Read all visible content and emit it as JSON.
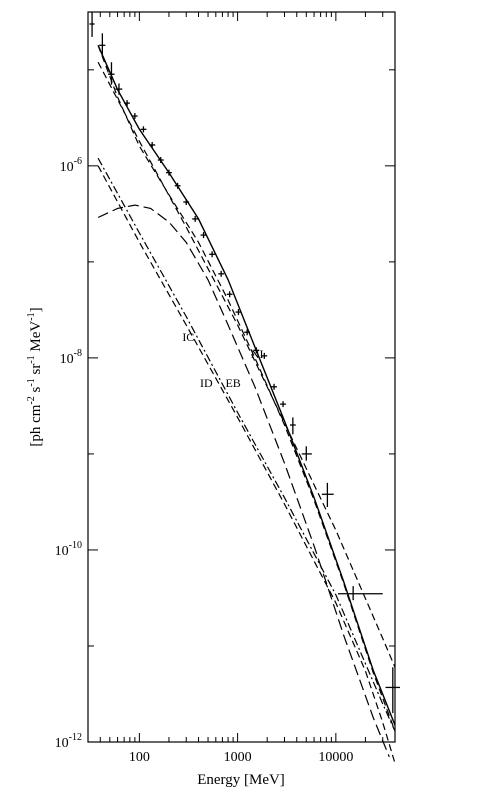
{
  "chart_data": {
    "type": "line",
    "title": "",
    "xlabel": "Energy [MeV]",
    "ylabel": "[ph cm^-2 s^-1 sr^-1 MeV^-1]",
    "ylabel_parts": [
      "[ph cm",
      "-2",
      " s",
      "-1",
      " sr",
      "-1",
      " MeV",
      "-1",
      "]"
    ],
    "xscale": "log",
    "yscale": "log",
    "xlim": [
      30,
      40000
    ],
    "ylim": [
      1e-12,
      4e-05
    ],
    "xticks": [
      {
        "value": 100,
        "label": "100"
      },
      {
        "value": 1000,
        "label": "1000"
      },
      {
        "value": 10000,
        "label": "10000"
      }
    ],
    "yticks": [
      {
        "value": 1e-06,
        "base": "10",
        "exp": "-6"
      },
      {
        "value": 1e-08,
        "base": "10",
        "exp": "-8"
      },
      {
        "value": 1e-10,
        "base": "10",
        "exp": "-10"
      },
      {
        "value": 1e-12,
        "base": "10",
        "exp": "-12"
      }
    ],
    "grid": false,
    "series": [
      {
        "name": "",
        "style": "solid",
        "points": [
          [
            38,
            1.8e-05
          ],
          [
            60,
            6.2e-06
          ],
          [
            100,
            2.4e-06
          ],
          [
            200,
            8.5e-07
          ],
          [
            400,
            2.8e-07
          ],
          [
            800,
            6.5e-08
          ],
          [
            1500,
            1.3e-08
          ],
          [
            3000,
            2.2e-09
          ],
          [
            6000,
            3.5e-10
          ],
          [
            12000,
            4.7e-11
          ],
          [
            24000,
            5.6e-12
          ],
          [
            40000,
            1.5e-12
          ]
        ]
      },
      {
        "name": "",
        "style": "dashed",
        "points": [
          [
            38,
            1.8e-05
          ],
          [
            60,
            5.2e-06
          ],
          [
            100,
            1.6e-06
          ],
          [
            200,
            5e-07
          ],
          [
            400,
            1.6e-07
          ],
          [
            800,
            4e-08
          ],
          [
            1500,
            1e-08
          ],
          [
            3000,
            2e-09
          ],
          [
            6000,
            3.3e-10
          ],
          [
            12000,
            4.5e-11
          ],
          [
            24000,
            5.3e-12
          ],
          [
            40000,
            1.3e-12
          ]
        ]
      },
      {
        "name": "",
        "style": "long-dashed",
        "points": [
          [
            38,
            2.9e-07
          ],
          [
            60,
            3.6e-07
          ],
          [
            90,
            3.9e-07
          ],
          [
            130,
            3.6e-07
          ],
          [
            200,
            2.6e-07
          ],
          [
            300,
            1.6e-07
          ],
          [
            500,
            6.5e-08
          ],
          [
            800,
            2.2e-08
          ],
          [
            1500,
            5e-09
          ],
          [
            3000,
            8e-10
          ],
          [
            6000,
            1.1e-10
          ],
          [
            12000,
            1.3e-11
          ],
          [
            24000,
            1.8e-12
          ],
          [
            35000,
            7e-13
          ]
        ]
      },
      {
        "name": "IC",
        "style": "dashed",
        "points": [
          [
            38,
            1.2e-05
          ],
          [
            100,
            1.8e-06
          ],
          [
            300,
            2.3e-07
          ],
          [
            1000,
            2.2e-08
          ],
          [
            3000,
            2.1e-09
          ],
          [
            10000,
            1.6e-10
          ],
          [
            30000,
            1.2e-11
          ],
          [
            40000,
            6e-12
          ]
        ]
      },
      {
        "name": "ID",
        "style": "dash-dot",
        "points": [
          [
            38,
            1.2e-06
          ],
          [
            100,
            2e-07
          ],
          [
            300,
            2.7e-08
          ],
          [
            1000,
            2.7e-09
          ],
          [
            3000,
            3.5e-10
          ],
          [
            10000,
            3.4e-11
          ],
          [
            30000,
            2.5e-12
          ],
          [
            40000,
            1.3e-12
          ]
        ]
      },
      {
        "name": "EB",
        "style": "dashed",
        "points": [
          [
            38,
            1e-06
          ],
          [
            100,
            1.6e-07
          ],
          [
            300,
            2.2e-08
          ],
          [
            1000,
            2.4e-09
          ],
          [
            3000,
            3e-10
          ],
          [
            10000,
            2.8e-11
          ],
          [
            20000,
            5.5e-12
          ],
          [
            30000,
            1.6e-12
          ],
          [
            40000,
            6e-13
          ]
        ]
      }
    ],
    "data_points": [
      {
        "x": 33,
        "y": 3e-05,
        "xerr": [
          31,
          35
        ],
        "yerr": [
          2.2e-05,
          4e-05
        ]
      },
      {
        "x": 42,
        "y": 1.8e-05,
        "xerr": [
          39,
          45
        ],
        "yerr": [
          1.4e-05,
          2.4e-05
        ]
      },
      {
        "x": 52,
        "y": 9e-06,
        "xerr": [
          48,
          56
        ],
        "yerr": [
          7e-06,
          1.2e-05
        ]
      },
      {
        "x": 62,
        "y": 6.3e-06,
        "xerr": [
          57,
          67
        ],
        "yerr": [
          5.5e-06,
          7.2e-06
        ]
      },
      {
        "x": 75,
        "y": 4.5e-06,
        "xerr": [
          70,
          80
        ]
      },
      {
        "x": 90,
        "y": 3.3e-06,
        "xerr": [
          84,
          96
        ]
      },
      {
        "x": 110,
        "y": 2.4e-06,
        "xerr": [
          103,
          118
        ]
      },
      {
        "x": 135,
        "y": 1.65e-06,
        "xerr": [
          126,
          145
        ]
      },
      {
        "x": 165,
        "y": 1.15e-06,
        "xerr": [
          154,
          177
        ]
      },
      {
        "x": 200,
        "y": 8.5e-07,
        "xerr": [
          187,
          214
        ]
      },
      {
        "x": 245,
        "y": 6.2e-07,
        "xerr": [
          229,
          262
        ]
      },
      {
        "x": 300,
        "y": 4.2e-07,
        "xerr": [
          280,
          321
        ]
      },
      {
        "x": 370,
        "y": 2.8e-07,
        "xerr": [
          345,
          396
        ]
      },
      {
        "x": 450,
        "y": 1.9e-07,
        "xerr": [
          420,
          482
        ]
      },
      {
        "x": 550,
        "y": 1.2e-07,
        "xerr": [
          514,
          589
        ]
      },
      {
        "x": 680,
        "y": 7.5e-08,
        "xerr": [
          635,
          728
        ]
      },
      {
        "x": 830,
        "y": 4.6e-08,
        "xerr": [
          775,
          888
        ]
      },
      {
        "x": 1020,
        "y": 3e-08,
        "xerr": [
          953,
          1092
        ]
      },
      {
        "x": 1250,
        "y": 1.85e-08,
        "xerr": [
          1168,
          1338
        ]
      },
      {
        "x": 1550,
        "y": 1.2e-08,
        "xerr": [
          1448,
          1660
        ]
      },
      {
        "x": 1870,
        "y": 1.05e-08,
        "xerr": [
          1747,
          2002
        ]
      },
      {
        "x": 2350,
        "y": 5e-09,
        "xerr": [
          2195,
          2516
        ]
      },
      {
        "x": 2900,
        "y": 3.3e-09,
        "xerr": [
          2709,
          3105
        ]
      },
      {
        "x": 3650,
        "y": 2e-09,
        "xerr": [
          3410,
          3908
        ],
        "yerr": [
          1.6e-09,
          2.4e-09
        ]
      },
      {
        "x": 5000,
        "y": 1e-09,
        "xerr": [
          4500,
          5700
        ],
        "yerr": [
          8.5e-10,
          1.2e-09
        ]
      },
      {
        "x": 8200,
        "y": 3.8e-10,
        "xerr": [
          7200,
          9500
        ],
        "yerr": [
          2.8e-10,
          5e-10
        ]
      },
      {
        "x": 15000,
        "y": 3.5e-11,
        "xerr": [
          10500,
          30000
        ],
        "yerr": [
          3e-11,
          4.2e-11
        ]
      },
      {
        "x": 38000,
        "y": 3.7e-12,
        "xerr": [
          32000,
          45000
        ],
        "yerr": [
          2e-12,
          6e-12
        ]
      }
    ],
    "annotations": [
      {
        "text": "IC",
        "x": 315,
        "y": 1.5e-08
      },
      {
        "text": "NI",
        "x": 1580,
        "y": 1e-08
      },
      {
        "text": "ID",
        "x": 480,
        "y": 5e-09
      },
      {
        "text": "EB",
        "x": 900,
        "y": 5e-09
      }
    ]
  }
}
